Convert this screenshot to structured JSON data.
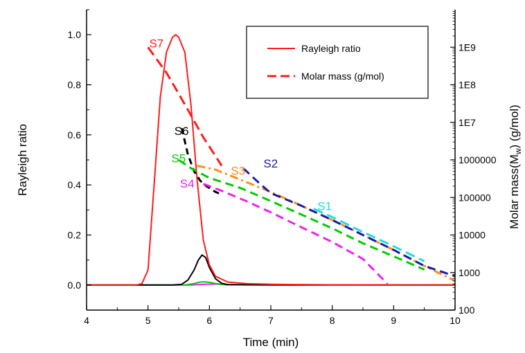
{
  "chart_data": {
    "type": "line",
    "xlabel": "Time (min)",
    "ylabel_left": "Rayleigh ratio",
    "ylabel_right": "Molar mass(M",
    "ylabel_right_sub": "w",
    "ylabel_right_suffix": ") (g/mol)",
    "xlim": [
      4,
      10
    ],
    "ylim_left": [
      -0.1,
      1.1
    ],
    "ylim_right_log": [
      100,
      10000000000
    ],
    "right_scale": "log",
    "x_ticks": [
      "4",
      "5",
      "6",
      "7",
      "8",
      "9",
      "10"
    ],
    "y_left_ticks": [
      "0.0",
      "0.2",
      "0.4",
      "0.6",
      "0.8",
      "1.0"
    ],
    "y_right_ticks": [
      "100",
      "1000",
      "10000",
      "100000",
      "1000000",
      "1E7",
      "1E8",
      "1E9"
    ],
    "legend": {
      "placement": "top-right",
      "entries": [
        {
          "label": "Rayleigh ratio",
          "style": "solid",
          "color": "#ff1a1a"
        },
        {
          "label": "Molar mass (g/mol)",
          "style": "dashed",
          "color": "#ff1a1a"
        }
      ]
    },
    "rayleigh_series": [
      {
        "name": "S7",
        "color": "#ff1a1a",
        "x": [
          4.0,
          4.8,
          4.9,
          5.0,
          5.1,
          5.2,
          5.3,
          5.4,
          5.45,
          5.5,
          5.6,
          5.7,
          5.8,
          5.9,
          6.0,
          6.1,
          6.3,
          6.6,
          7.0,
          8.0,
          10.0
        ],
        "y": [
          0.0,
          0.0,
          0.005,
          0.06,
          0.4,
          0.75,
          0.93,
          0.99,
          1.0,
          0.99,
          0.93,
          0.72,
          0.42,
          0.18,
          0.08,
          0.035,
          0.012,
          0.006,
          0.003,
          0.001,
          0.0
        ]
      },
      {
        "name": "S6",
        "color": "#000000",
        "x": [
          4.0,
          5.4,
          5.55,
          5.65,
          5.75,
          5.82,
          5.88,
          5.94,
          6.0,
          6.1,
          6.2,
          6.3,
          7.0,
          10.0
        ],
        "y": [
          0.0,
          0.0,
          0.003,
          0.02,
          0.06,
          0.1,
          0.12,
          0.11,
          0.07,
          0.025,
          0.007,
          0.002,
          0.0,
          0.0
        ]
      },
      {
        "name": "S5",
        "color": "#00cc00",
        "x": [
          4.0,
          5.6,
          5.75,
          5.85,
          5.92,
          6.0,
          6.1,
          6.3,
          10.0
        ],
        "y": [
          0.0,
          0.0,
          0.006,
          0.012,
          0.013,
          0.011,
          0.006,
          0.001,
          0.0
        ]
      },
      {
        "name": "S4",
        "color": "#ee22ee",
        "x": [
          4.0,
          5.7,
          5.9,
          6.1,
          6.3,
          10.0
        ],
        "y": [
          0.0,
          0.0,
          0.003,
          0.004,
          0.001,
          0.0
        ]
      }
    ],
    "molar_mass_series": [
      {
        "name": "S7",
        "color": "#ff1a1a",
        "dash": "14 7",
        "x": [
          5.0,
          5.3,
          5.6,
          5.9,
          6.2
        ],
        "y": [
          1000000000,
          210000000,
          30000000,
          4000000,
          700000
        ]
      },
      {
        "name": "S6",
        "color": "#000000",
        "dash": "9 6",
        "x": [
          5.55,
          5.65,
          5.75,
          5.85,
          5.95,
          6.1,
          6.2
        ],
        "y": [
          7000000,
          1400000,
          500000,
          280000,
          200000,
          140000,
          120000
        ]
      },
      {
        "name": "S5",
        "color": "#00cc00",
        "dash": "12 7",
        "x": [
          5.5,
          5.7,
          6.0,
          6.5,
          7.0,
          7.5,
          8.0,
          8.5,
          9.0,
          9.5
        ],
        "y": [
          1000000,
          600000,
          330000,
          180000,
          80000,
          35000,
          15000,
          6000,
          2700,
          1200
        ]
      },
      {
        "name": "S4",
        "color": "#ee22ee",
        "dash": "12 7",
        "x": [
          5.9,
          6.2,
          6.6,
          7.0,
          7.5,
          8.0,
          8.5,
          8.9
        ],
        "y": [
          230000,
          150000,
          80000,
          40000,
          16000,
          6500,
          2300,
          500
        ]
      },
      {
        "name": "S3",
        "color": "#ff8c1a",
        "dash": "12 5 3 5",
        "x": [
          5.8,
          6.1,
          6.5,
          7.0,
          7.5,
          8.0,
          8.5,
          9.0,
          9.5,
          10.0
        ],
        "y": [
          700000,
          550000,
          300000,
          140000,
          60000,
          25000,
          10000,
          4000,
          1500,
          600
        ]
      },
      {
        "name": "S2",
        "color": "#1a1aaa",
        "dash": "12 7",
        "x": [
          6.55,
          6.8,
          7.0,
          7.5,
          8.0,
          8.5,
          9.0,
          9.5,
          10.0
        ],
        "y": [
          600000,
          250000,
          130000,
          60000,
          25000,
          10000,
          4000,
          1500,
          800
        ]
      },
      {
        "name": "S1",
        "color": "#22dddd",
        "dash": "14 7",
        "x": [
          7.7,
          8.0,
          8.5,
          9.0,
          9.5
        ],
        "y": [
          50000,
          30000,
          12000,
          5000,
          2000
        ]
      }
    ],
    "annotations": [
      {
        "text": "S7",
        "color": "#ff1a1a",
        "x": 5.02,
        "y_left": 0.95
      },
      {
        "text": "S6",
        "color": "#000000",
        "x": 5.43,
        "y_left": 0.6
      },
      {
        "text": "S5",
        "color": "#00cc00",
        "x": 5.38,
        "y_left": 0.49
      },
      {
        "text": "S4",
        "color": "#ee22ee",
        "x": 5.52,
        "y_left": 0.39
      },
      {
        "text": "S3",
        "color": "#ff8c1a",
        "x": 6.35,
        "y_left": 0.44
      },
      {
        "text": "S2",
        "color": "#1a1aaa",
        "x": 6.88,
        "y_left": 0.47
      },
      {
        "text": "S1",
        "color": "#22dddd",
        "x": 7.76,
        "y_left": 0.3
      }
    ],
    "grid": false
  }
}
